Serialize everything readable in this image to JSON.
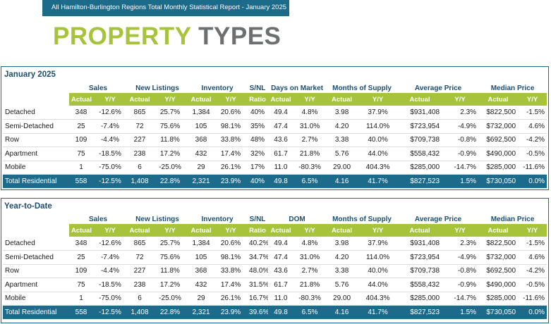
{
  "header": {
    "banner_text": "All Hamilton-Burlington Regions Total Monthly Statistical Report -  January 2025",
    "title_word1": "PROPERTY",
    "title_word2": "TYPES"
  },
  "colors": {
    "brand_blue": "#1c6b8a",
    "brand_green": "#a6c33b",
    "title_gray": "#6d6f71"
  },
  "sections": [
    {
      "title": "January 2025",
      "groups": [
        "Sales",
        "New Listings",
        "Inventory",
        "S/NL",
        "Days on Market",
        "Months of Supply",
        "Average Price",
        "Median Price"
      ],
      "subheaders": [
        "Actual",
        "Y/Y",
        "Actual",
        "Y/Y",
        "Actual",
        "Y/Y",
        "Ratio",
        "Actual",
        "Y/Y",
        "Actual",
        "Y/Y",
        "Actual",
        "Y/Y",
        "Actual",
        "Y/Y"
      ],
      "rows": [
        [
          "Detached",
          "348",
          "-12.6%",
          "865",
          "25.7%",
          "1,384",
          "20.6%",
          "40%",
          "49.4",
          "4.8%",
          "3.98",
          "37.9%",
          "$931,408",
          "2.3%",
          "$822,500",
          "-1.5%"
        ],
        [
          "Semi-Detached",
          "25",
          "-7.4%",
          "72",
          "75.6%",
          "105",
          "98.1%",
          "35%",
          "47.4",
          "31.0%",
          "4.20",
          "114.0%",
          "$723,954",
          "-4.9%",
          "$732,000",
          "4.6%"
        ],
        [
          "Row",
          "109",
          "-4.4%",
          "227",
          "11.8%",
          "368",
          "33.8%",
          "48%",
          "43.6",
          "2.7%",
          "3.38",
          "40.0%",
          "$709,738",
          "-0.8%",
          "$692,500",
          "-4.2%"
        ],
        [
          "Apartment",
          "75",
          "-18.5%",
          "238",
          "17.2%",
          "432",
          "17.4%",
          "32%",
          "61.7",
          "21.8%",
          "5.76",
          "44.0%",
          "$558,432",
          "-0.9%",
          "$490,000",
          "-0.5%"
        ],
        [
          "Mobile",
          "1",
          "-75.0%",
          "6",
          "-25.0%",
          "29",
          "26.1%",
          "17%",
          "11.0",
          "-80.3%",
          "29.00",
          "404.3%",
          "$285,000",
          "-14.7%",
          "$285,000",
          "-11.6%"
        ]
      ],
      "total": [
        "Total Residential",
        "558",
        "-12.5%",
        "1,408",
        "22.8%",
        "2,321",
        "23.9%",
        "40%",
        "49.8",
        "6.5%",
        "4.16",
        "41.7%",
        "$827,523",
        "1.5%",
        "$730,050",
        "0.0%"
      ]
    },
    {
      "title": "Year-to-Date",
      "groups": [
        "Sales",
        "New Listings",
        "Inventory",
        "S/NL",
        "DOM",
        "Months of Supply",
        "Average Price",
        "Median Price"
      ],
      "subheaders": [
        "Actual",
        "Y/Y",
        "Actual",
        "Y/Y",
        "Actual",
        "Y/Y",
        "Ratio",
        "Actual",
        "Y/Y",
        "Actual",
        "Y/Y",
        "Actual",
        "Y/Y",
        "Actual",
        "Y/Y"
      ],
      "rows": [
        [
          "Detached",
          "348",
          "-12.6%",
          "865",
          "25.7%",
          "1,384",
          "20.6%",
          "40.2%",
          "49.4",
          "4.8%",
          "3.98",
          "37.9%",
          "$931,408",
          "2.3%",
          "$822,500",
          "-1.5%"
        ],
        [
          "Semi-Detached",
          "25",
          "-7.4%",
          "72",
          "75.6%",
          "105",
          "98.1%",
          "34.7%",
          "47.4",
          "31.0%",
          "4.20",
          "114.0%",
          "$723,954",
          "-4.9%",
          "$732,000",
          "4.6%"
        ],
        [
          "Row",
          "109",
          "-4.4%",
          "227",
          "11.8%",
          "368",
          "33.8%",
          "48.0%",
          "43.6",
          "2.7%",
          "3.38",
          "40.0%",
          "$709,738",
          "-0.8%",
          "$692,500",
          "-4.2%"
        ],
        [
          "Apartment",
          "75",
          "-18.5%",
          "238",
          "17.2%",
          "432",
          "17.4%",
          "31.5%",
          "61.7",
          "21.8%",
          "5.76",
          "44.0%",
          "$558,432",
          "-0.9%",
          "$490,000",
          "-0.5%"
        ],
        [
          "Mobile",
          "1",
          "-75.0%",
          "6",
          "-25.0%",
          "29",
          "26.1%",
          "16.7%",
          "11.0",
          "-80.3%",
          "29.00",
          "404.3%",
          "$285,000",
          "-14.7%",
          "$285,000",
          "-11.6%"
        ]
      ],
      "total": [
        "Total Residential",
        "558",
        "-12.5%",
        "1,408",
        "22.8%",
        "2,321",
        "23.9%",
        "39.6%",
        "49.8",
        "6.5%",
        "4.16",
        "41.7%",
        "$827,523",
        "1.5%",
        "$730,050",
        "0.0%"
      ]
    }
  ]
}
